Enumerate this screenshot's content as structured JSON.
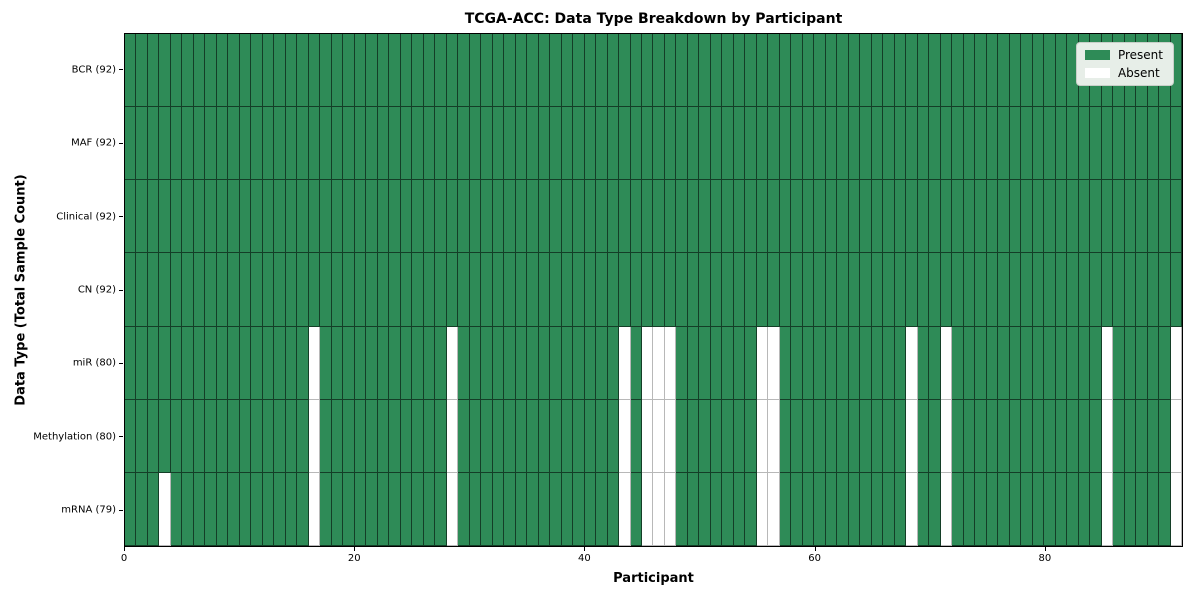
{
  "chart_data": {
    "type": "heatmap",
    "title": "TCGA-ACC: Data Type Breakdown by Participant",
    "xlabel": "Participant",
    "ylabel": "Data Type (Total Sample Count)",
    "n_participants": 92,
    "x_ticks": [
      0,
      20,
      40,
      60,
      80
    ],
    "colors": {
      "present": "#2e8b57",
      "absent": "#ffffff"
    },
    "legend": [
      {
        "label": "Present",
        "color": "#2e8b57"
      },
      {
        "label": "Absent",
        "color": "#ffffff"
      }
    ],
    "rows": [
      {
        "label": "BCR (92)",
        "total": 92,
        "absent": []
      },
      {
        "label": "MAF (92)",
        "total": 92,
        "absent": []
      },
      {
        "label": "Clinical (92)",
        "total": 92,
        "absent": []
      },
      {
        "label": "CN (92)",
        "total": 92,
        "absent": []
      },
      {
        "label": "miR (80)",
        "total": 80,
        "absent": [
          16,
          28,
          43,
          45,
          46,
          47,
          55,
          56,
          68,
          71,
          85,
          91
        ]
      },
      {
        "label": "Methylation (80)",
        "total": 80,
        "absent": [
          16,
          28,
          43,
          45,
          46,
          47,
          55,
          56,
          68,
          71,
          85,
          91
        ]
      },
      {
        "label": "mRNA (79)",
        "total": 79,
        "absent": [
          3,
          16,
          28,
          43,
          45,
          46,
          47,
          55,
          56,
          68,
          71,
          85,
          91
        ]
      }
    ]
  }
}
